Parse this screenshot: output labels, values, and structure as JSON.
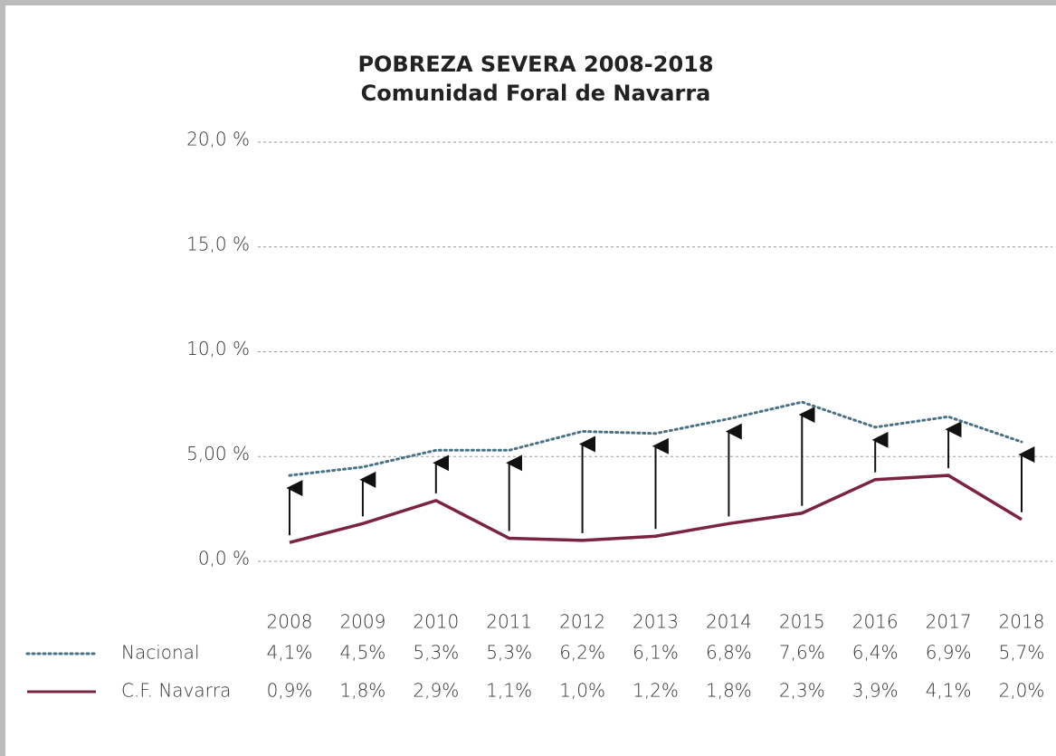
{
  "chart_data": {
    "type": "line",
    "title": "POBREZA SEVERA 2008-2018",
    "subtitle": "Comunidad Foral de Navarra",
    "categories": [
      "2008",
      "2009",
      "2010",
      "2011",
      "2012",
      "2013",
      "2014",
      "2015",
      "2016",
      "2017",
      "2018"
    ],
    "series": [
      {
        "name": "Nacional",
        "color": "#4a7284",
        "style": "dotted",
        "values": [
          4.1,
          4.5,
          5.3,
          5.3,
          6.2,
          6.1,
          6.8,
          7.6,
          6.4,
          6.9,
          5.7
        ],
        "value_labels": [
          "4,1%",
          "4,5%",
          "5,3%",
          "5,3%",
          "6,2%",
          "6,1%",
          "6,8%",
          "7,6%",
          "6,4%",
          "6,9%",
          "5,7%"
        ]
      },
      {
        "name": "C.F. Navarra",
        "color": "#7a2442",
        "style": "solid",
        "values": [
          0.9,
          1.8,
          2.9,
          1.1,
          1.0,
          1.2,
          1.8,
          2.3,
          3.9,
          4.1,
          2.0
        ],
        "value_labels": [
          "0,9%",
          "1,8%",
          "2,9%",
          "1,1%",
          "1,0%",
          "1,2%",
          "1,8%",
          "2,3%",
          "3,9%",
          "4,1%",
          "2,0%"
        ]
      }
    ],
    "ylim": [
      0,
      20
    ],
    "yticks": [
      {
        "value": 0,
        "label": "0,0 %"
      },
      {
        "value": 5,
        "label": "5,00 %"
      },
      {
        "value": 10,
        "label": "10,0 %"
      },
      {
        "value": 15,
        "label": "15,0 %"
      },
      {
        "value": 20,
        "label": "20,0 %"
      }
    ],
    "grid": true
  }
}
